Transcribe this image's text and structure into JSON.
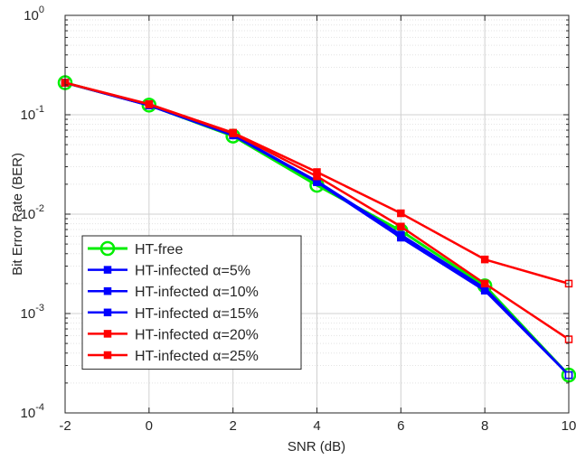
{
  "chart_data": {
    "type": "line",
    "xlabel": "SNR (dB)",
    "ylabel": "Bit Error Rate (BER)",
    "x": [
      -2,
      0,
      2,
      4,
      6,
      8,
      10
    ],
    "xlim": [
      -2,
      10
    ],
    "ylim": [
      0.0001,
      1
    ],
    "yscale": "log",
    "grid": true,
    "legend_position": "bottom-left",
    "x_ticks": [
      "-2",
      "0",
      "2",
      "4",
      "6",
      "8",
      "10"
    ],
    "y_ticks": [
      {
        "base": "10",
        "exp": "-4"
      },
      {
        "base": "10",
        "exp": "-3"
      },
      {
        "base": "10",
        "exp": "-2"
      },
      {
        "base": "10",
        "exp": "-1"
      },
      {
        "base": "10",
        "exp": "0"
      }
    ],
    "series": [
      {
        "name": "HT-free",
        "color": "#00ee00",
        "marker": "circle",
        "values": [
          0.21,
          0.125,
          0.061,
          0.0195,
          0.0068,
          0.0019,
          0.00024
        ]
      },
      {
        "name": "HT-infected α=5%",
        "color": "#0000ff",
        "marker": "square",
        "values": [
          0.21,
          0.124,
          0.062,
          0.021,
          0.0058,
          0.0017,
          0.00024
        ]
      },
      {
        "name": "HT-infected α=10%",
        "color": "#0000ff",
        "marker": "square",
        "values": [
          0.21,
          0.124,
          0.062,
          0.021,
          0.006,
          0.00175,
          0.00024
        ]
      },
      {
        "name": "HT-infected α=15%",
        "color": "#0000ff",
        "marker": "square",
        "values": [
          0.21,
          0.124,
          0.063,
          0.0215,
          0.0062,
          0.0018,
          0.00024
        ]
      },
      {
        "name": "HT-infected α=20%",
        "color": "#ff0000",
        "marker": "square",
        "values": [
          0.21,
          0.127,
          0.065,
          0.024,
          0.0075,
          0.002,
          0.00055
        ]
      },
      {
        "name": "HT-infected α=25%",
        "color": "#ff0000",
        "marker": "square",
        "values": [
          0.21,
          0.128,
          0.066,
          0.0265,
          0.0102,
          0.0035,
          0.002
        ]
      }
    ]
  }
}
